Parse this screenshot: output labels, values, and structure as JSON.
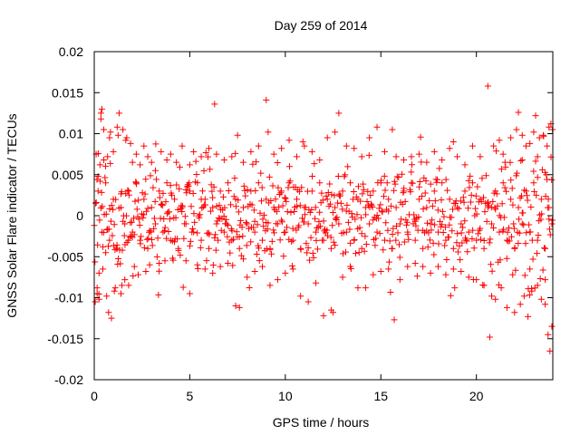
{
  "chart_data": {
    "type": "scatter",
    "title": "Day 259 of 2014",
    "xlabel": "GPS time / hours",
    "ylabel": "GNSS Solar Flare indicator / TECUs",
    "xlim": [
      0,
      24
    ],
    "ylim": [
      -0.02,
      0.02
    ],
    "x_ticks": [
      "0",
      "5",
      "10",
      "15",
      "20"
    ],
    "y_ticks": [
      "-0.02",
      "-0.015",
      "-0.01",
      "-0.005",
      "0",
      "0.005",
      "0.01",
      "0.015",
      "0.02"
    ],
    "grid": false,
    "marker": "plus",
    "color": "#ff0000",
    "points": [
      [
        0.05,
        -0.0105
      ],
      [
        0.1,
        0.0075
      ],
      [
        0.15,
        -0.0095
      ],
      [
        0.2,
        0.0048
      ],
      [
        0.25,
        -0.007
      ],
      [
        0.3,
        0.0062
      ],
      [
        0.35,
        0.0125
      ],
      [
        0.4,
        0.013
      ],
      [
        0.45,
        -0.0065
      ],
      [
        0.5,
        0.0068
      ],
      [
        0.6,
        -0.0045
      ],
      [
        0.7,
        0.0072
      ],
      [
        0.75,
        -0.0118
      ],
      [
        0.85,
        0.0102
      ],
      [
        0.9,
        -0.0125
      ],
      [
        1.0,
        0.0078
      ],
      [
        1.1,
        -0.0088
      ],
      [
        1.2,
        0.0108
      ],
      [
        1.3,
        0.0125
      ],
      [
        1.4,
        -0.0095
      ],
      [
        1.5,
        0.0105
      ],
      [
        1.6,
        -0.0078
      ],
      [
        1.7,
        0.0095
      ],
      [
        1.8,
        -0.0085
      ],
      [
        1.9,
        0.0088
      ],
      [
        2.0,
        0.0065
      ],
      [
        2.1,
        -0.0062
      ],
      [
        2.2,
        0.0075
      ],
      [
        2.3,
        -0.0072
      ],
      [
        2.4,
        0.0062
      ],
      [
        2.6,
        0.0085
      ],
      [
        2.7,
        -0.0068
      ],
      [
        2.8,
        0.0072
      ],
      [
        2.9,
        -0.006
      ],
      [
        3.0,
        0.0065
      ],
      [
        3.2,
        0.0055
      ],
      [
        3.4,
        -0.0058
      ],
      [
        3.5,
        0.0078
      ],
      [
        3.7,
        -0.0055
      ],
      [
        3.8,
        0.0068
      ],
      [
        4.0,
        0.0075
      ],
      [
        4.1,
        -0.0052
      ],
      [
        4.3,
        0.0065
      ],
      [
        4.5,
        -0.0048
      ],
      [
        4.6,
        0.0085
      ],
      [
        4.8,
        -0.0055
      ],
      [
        5.0,
        0.0062
      ],
      [
        5.0,
        -0.0095
      ],
      [
        5.2,
        0.0078
      ],
      [
        5.4,
        -0.006
      ],
      [
        5.6,
        0.0072
      ],
      [
        5.8,
        -0.0065
      ],
      [
        6.0,
        0.0082
      ],
      [
        6.2,
        -0.007
      ],
      [
        6.3,
        0.0136
      ],
      [
        6.4,
        0.0075
      ],
      [
        6.6,
        -0.0062
      ],
      [
        6.8,
        0.0068
      ],
      [
        7.0,
        -0.0058
      ],
      [
        7.2,
        0.0072
      ],
      [
        7.4,
        -0.011
      ],
      [
        7.5,
        0.0098
      ],
      [
        7.6,
        -0.0112
      ],
      [
        7.8,
        0.0065
      ],
      [
        8.0,
        -0.0075
      ],
      [
        8.2,
        0.0078
      ],
      [
        8.4,
        -0.0068
      ],
      [
        8.6,
        0.0085
      ],
      [
        8.8,
        -0.0062
      ],
      [
        9.0,
        0.0141
      ],
      [
        9.1,
        0.0102
      ],
      [
        9.2,
        -0.0085
      ],
      [
        9.4,
        0.0075
      ],
      [
        9.6,
        -0.0078
      ],
      [
        9.8,
        0.0082
      ],
      [
        10.0,
        -0.007
      ],
      [
        10.2,
        0.0092
      ],
      [
        10.4,
        -0.0065
      ],
      [
        10.6,
        0.0072
      ],
      [
        10.8,
        -0.0098
      ],
      [
        11.0,
        0.0085
      ],
      [
        11.2,
        -0.0105
      ],
      [
        11.4,
        0.0078
      ],
      [
        11.6,
        -0.0082
      ],
      [
        11.8,
        0.0068
      ],
      [
        12.0,
        -0.0122
      ],
      [
        12.2,
        0.0095
      ],
      [
        12.4,
        -0.0115
      ],
      [
        12.5,
        -0.0118
      ],
      [
        12.6,
        0.0102
      ],
      [
        12.8,
        0.0125
      ],
      [
        13.0,
        -0.0075
      ],
      [
        13.2,
        0.0085
      ],
      [
        13.4,
        -0.0062
      ],
      [
        13.6,
        0.0082
      ],
      [
        13.8,
        -0.0088
      ],
      [
        14.0,
        0.0072
      ],
      [
        14.2,
        -0.0088
      ],
      [
        14.4,
        0.0095
      ],
      [
        14.6,
        -0.0072
      ],
      [
        14.8,
        0.0108
      ],
      [
        15.0,
        -0.0068
      ],
      [
        15.2,
        0.0078
      ],
      [
        15.4,
        -0.0065
      ],
      [
        15.6,
        0.0105
      ],
      [
        15.7,
        -0.0127
      ],
      [
        15.8,
        0.0072
      ],
      [
        16.0,
        -0.0078
      ],
      [
        16.2,
        0.0068
      ],
      [
        16.4,
        -0.0062
      ],
      [
        16.6,
        0.0072
      ],
      [
        16.8,
        -0.0058
      ],
      [
        17.0,
        0.0075
      ],
      [
        17.2,
        -0.0062
      ],
      [
        17.4,
        0.0065
      ],
      [
        17.6,
        -0.007
      ],
      [
        17.8,
        0.0078
      ],
      [
        18.0,
        -0.0062
      ],
      [
        18.2,
        0.0068
      ],
      [
        18.4,
        -0.0072
      ],
      [
        18.6,
        0.0082
      ],
      [
        18.8,
        -0.0065
      ],
      [
        19.0,
        0.0072
      ],
      [
        19.2,
        -0.0068
      ],
      [
        19.4,
        0.0062
      ],
      [
        19.6,
        -0.0075
      ],
      [
        19.8,
        0.0085
      ],
      [
        20.0,
        -0.0078
      ],
      [
        20.2,
        0.0072
      ],
      [
        20.4,
        -0.0085
      ],
      [
        20.6,
        0.0158
      ],
      [
        20.7,
        -0.0148
      ],
      [
        20.8,
        -0.0098
      ],
      [
        20.9,
        0.0085
      ],
      [
        21.0,
        -0.0102
      ],
      [
        21.2,
        0.0092
      ],
      [
        21.3,
        -0.0088
      ],
      [
        21.4,
        0.0075
      ],
      [
        21.6,
        -0.0112
      ],
      [
        21.8,
        0.0095
      ],
      [
        22.0,
        -0.0118
      ],
      [
        22.1,
        0.0105
      ],
      [
        22.2,
        0.0126
      ],
      [
        22.3,
        -0.0108
      ],
      [
        22.4,
        0.0098
      ],
      [
        22.5,
        -0.0098
      ],
      [
        22.6,
        0.0085
      ],
      [
        22.7,
        -0.0123
      ],
      [
        22.8,
        0.0088
      ],
      [
        22.9,
        -0.0092
      ],
      [
        23.0,
        0.0102
      ],
      [
        23.1,
        0.0122
      ],
      [
        23.2,
        -0.0085
      ],
      [
        23.3,
        0.0095
      ],
      [
        23.4,
        -0.0102
      ],
      [
        23.5,
        0.0098
      ],
      [
        23.6,
        -0.0108
      ],
      [
        23.7,
        0.0085
      ],
      [
        23.75,
        -0.0145
      ],
      [
        23.8,
        0.0108
      ],
      [
        23.85,
        -0.0165
      ],
      [
        23.9,
        0.0112
      ],
      [
        23.95,
        -0.0135
      ],
      [
        23.98,
        0.0105
      ],
      [
        23.6,
        -0.0078
      ],
      [
        23.2,
        0.0072
      ],
      [
        22.8,
        -0.0065
      ],
      [
        22.4,
        0.0068
      ],
      [
        21.9,
        -0.0072
      ],
      [
        21.5,
        0.0065
      ],
      [
        0.15,
        -0.0088
      ],
      [
        0.25,
        -0.0102
      ],
      [
        0.35,
        0.0118
      ],
      [
        0.5,
        0.0105
      ],
      [
        0.65,
        -0.0098
      ],
      [
        0.8,
        0.0095
      ],
      [
        1.05,
        -0.0092
      ],
      [
        1.25,
        0.0098
      ],
      [
        1.45,
        -0.0085
      ],
      [
        1.65,
        0.0092
      ],
      [
        0.2,
        0.003
      ],
      [
        0.4,
        -0.002
      ],
      [
        0.6,
        0.004
      ],
      [
        0.8,
        -0.003
      ],
      [
        1.0,
        0.002
      ],
      [
        1.2,
        -0.004
      ],
      [
        1.4,
        0.001
      ],
      [
        1.6,
        -0.001
      ],
      [
        1.8,
        0.003
      ],
      [
        2.0,
        -0.002
      ],
      [
        2.2,
        0.004
      ],
      [
        2.4,
        -0.003
      ],
      [
        2.6,
        0.002
      ],
      [
        2.8,
        -0.004
      ],
      [
        3.0,
        0.001
      ],
      [
        3.2,
        -0.001
      ],
      [
        3.4,
        0.003
      ],
      [
        3.6,
        -0.002
      ],
      [
        3.8,
        0.004
      ],
      [
        4.0,
        -0.003
      ],
      [
        4.2,
        0.002
      ],
      [
        4.4,
        -0.004
      ],
      [
        4.6,
        0.001
      ],
      [
        4.8,
        -0.001
      ],
      [
        5.0,
        0.003
      ],
      [
        5.2,
        -0.002
      ],
      [
        5.4,
        0.004
      ],
      [
        5.6,
        -0.003
      ],
      [
        5.8,
        0.002
      ],
      [
        6.0,
        -0.004
      ],
      [
        6.2,
        0.001
      ],
      [
        6.4,
        -0.001
      ],
      [
        6.6,
        0.003
      ],
      [
        6.8,
        -0.002
      ],
      [
        7.0,
        0.004
      ],
      [
        7.2,
        -0.003
      ],
      [
        7.4,
        0.002
      ],
      [
        7.6,
        -0.004
      ],
      [
        7.8,
        0.001
      ],
      [
        8.0,
        -0.001
      ],
      [
        8.2,
        0.003
      ],
      [
        8.4,
        -0.002
      ],
      [
        8.6,
        0.004
      ],
      [
        8.8,
        -0.003
      ],
      [
        9.0,
        0.002
      ],
      [
        9.2,
        -0.004
      ],
      [
        9.4,
        0.001
      ],
      [
        9.6,
        -0.001
      ],
      [
        9.8,
        0.003
      ],
      [
        10.0,
        -0.002
      ],
      [
        10.2,
        0.004
      ],
      [
        10.4,
        -0.003
      ],
      [
        10.6,
        0.002
      ],
      [
        10.8,
        -0.004
      ],
      [
        11.0,
        0.001
      ],
      [
        11.2,
        -0.001
      ],
      [
        11.4,
        0.003
      ],
      [
        11.6,
        -0.002
      ],
      [
        11.8,
        0.004
      ],
      [
        12.0,
        -0.003
      ],
      [
        12.2,
        0.002
      ],
      [
        12.4,
        -0.004
      ],
      [
        12.6,
        0.001
      ],
      [
        12.8,
        -0.001
      ],
      [
        13.0,
        0.003
      ],
      [
        13.2,
        -0.002
      ],
      [
        13.4,
        0.004
      ],
      [
        13.6,
        -0.003
      ],
      [
        13.8,
        0.002
      ],
      [
        14.0,
        -0.004
      ],
      [
        14.2,
        0.001
      ],
      [
        14.4,
        -0.001
      ],
      [
        14.6,
        0.003
      ],
      [
        14.8,
        -0.002
      ],
      [
        15.0,
        0.004
      ],
      [
        15.2,
        -0.003
      ],
      [
        15.4,
        0.002
      ],
      [
        15.6,
        -0.004
      ],
      [
        15.8,
        0.001
      ],
      [
        16.0,
        -0.001
      ],
      [
        16.2,
        0.003
      ],
      [
        16.4,
        -0.002
      ],
      [
        16.6,
        0.004
      ],
      [
        16.8,
        -0.003
      ],
      [
        17.0,
        0.002
      ],
      [
        17.2,
        -0.004
      ],
      [
        17.4,
        0.001
      ],
      [
        17.6,
        -0.001
      ],
      [
        17.8,
        0.003
      ],
      [
        18.0,
        -0.002
      ],
      [
        18.2,
        0.004
      ],
      [
        18.4,
        -0.003
      ],
      [
        18.6,
        0.002
      ],
      [
        18.8,
        -0.004
      ],
      [
        19.0,
        0.001
      ],
      [
        19.2,
        -0.001
      ],
      [
        19.4,
        0.003
      ],
      [
        19.6,
        -0.002
      ],
      [
        19.8,
        0.004
      ],
      [
        20.0,
        -0.003
      ],
      [
        20.2,
        0.002
      ],
      [
        20.4,
        -0.004
      ],
      [
        20.6,
        0.001
      ],
      [
        20.8,
        -0.001
      ],
      [
        21.0,
        0.003
      ],
      [
        21.2,
        -0.002
      ],
      [
        21.4,
        0.004
      ],
      [
        21.6,
        -0.003
      ],
      [
        21.8,
        0.002
      ],
      [
        22.0,
        -0.004
      ],
      [
        22.2,
        0.001
      ],
      [
        22.4,
        -0.001
      ],
      [
        22.6,
        0.003
      ],
      [
        22.8,
        -0.002
      ],
      [
        23.0,
        0.004
      ],
      [
        23.2,
        -0.003
      ],
      [
        23.4,
        0.002
      ],
      [
        23.6,
        -0.004
      ],
      [
        23.8,
        0.001
      ],
      [
        23.95,
        -0.001
      ]
    ],
    "band": {
      "x_start": 0.0,
      "x_end": 24.0,
      "dx": 0.035,
      "sigma": 0.0042
    }
  }
}
